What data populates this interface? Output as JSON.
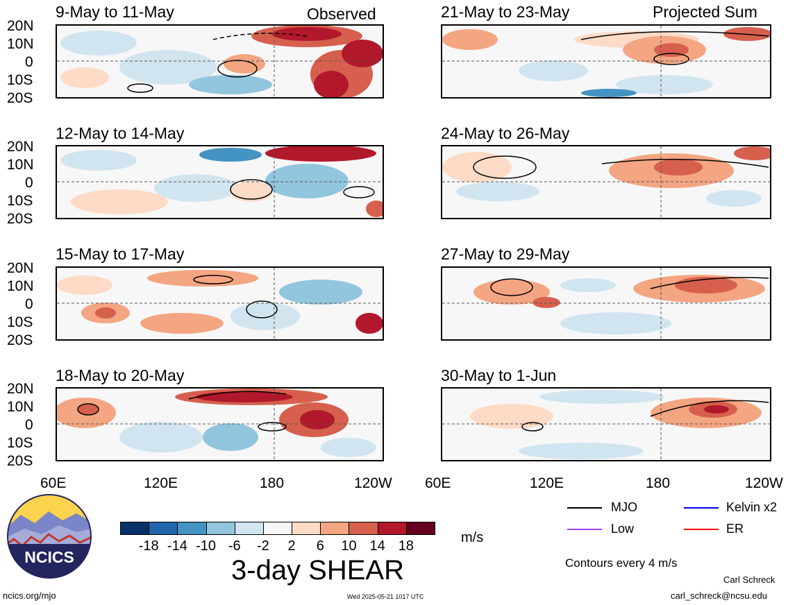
{
  "header": {
    "observed_label": "Observed",
    "projected_label": "Projected Sum"
  },
  "latitude_ticks": [
    "20N",
    "10N",
    "0",
    "10S",
    "20S"
  ],
  "longitude_ticks": [
    "60E",
    "120E",
    "180",
    "120W"
  ],
  "panels_left": [
    {
      "title": "9-May to 11-May"
    },
    {
      "title": "12-May to 14-May"
    },
    {
      "title": "15-May to 17-May"
    },
    {
      "title": "18-May to 20-May"
    }
  ],
  "panels_right": [
    {
      "title": "21-May to 23-May"
    },
    {
      "title": "24-May to 26-May"
    },
    {
      "title": "27-May to 29-May"
    },
    {
      "title": "30-May to 1-Jun"
    }
  ],
  "colorbar": {
    "ticks": [
      "-18",
      "-14",
      "-10",
      "-6",
      "-2",
      "2",
      "6",
      "10",
      "14",
      "18"
    ],
    "colors": [
      "#08306b",
      "#2166ac",
      "#4393c3",
      "#92c5de",
      "#d1e5f0",
      "#f7f7f7",
      "#fddbc7",
      "#f4a582",
      "#d6604d",
      "#b2182b",
      "#67001f"
    ],
    "units": "m/s",
    "title": "3-day SHEAR"
  },
  "legend": {
    "items": [
      {
        "label": "MJO",
        "color": "#000000"
      },
      {
        "label": "Kelvin x2",
        "color": "#0000ff"
      },
      {
        "label": "Low",
        "color": "#a040ff"
      },
      {
        "label": "ER",
        "color": "#ff0000"
      }
    ],
    "contour_note": "Contours every 4 m/s"
  },
  "footer": {
    "logo_text": "NCICS",
    "site": "ncics.org/mjo",
    "timestamp": "Wed 2025-05-21 1017 UTC",
    "author": "Carl Schreck",
    "email": "carl_schreck@ncsu.edu"
  }
}
